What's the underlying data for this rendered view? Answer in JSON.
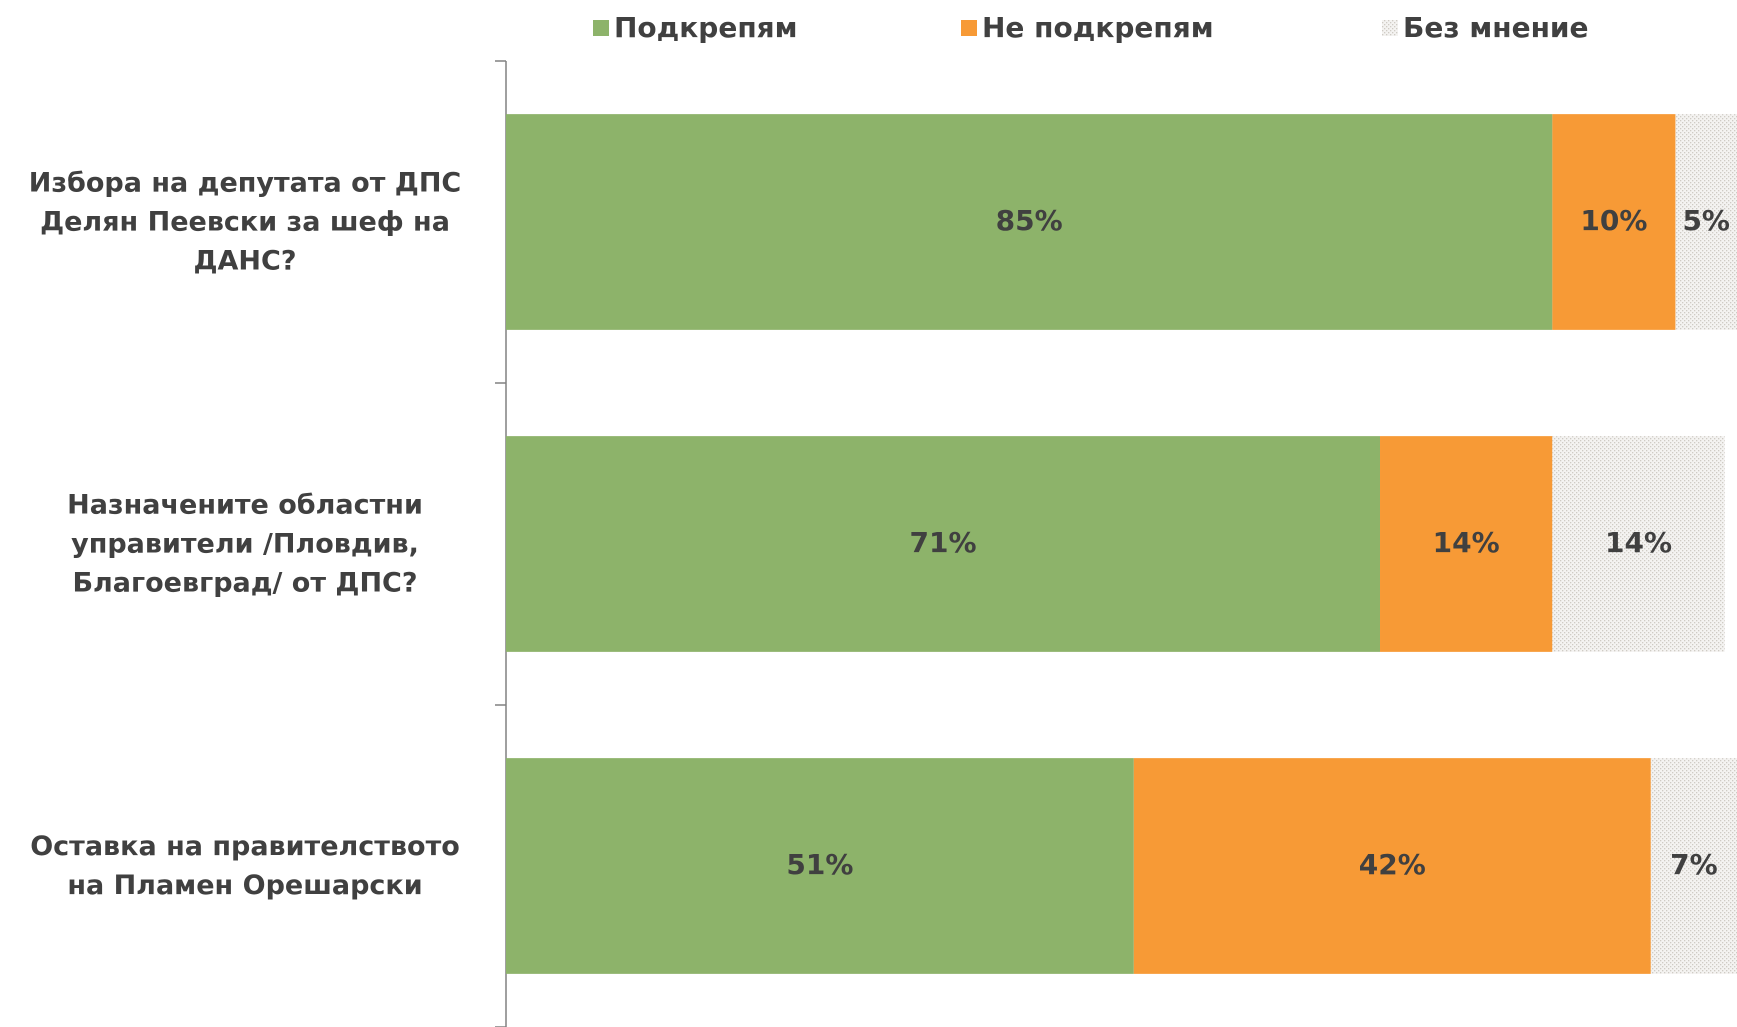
{
  "chart_data": {
    "type": "stacked-bar-horizontal",
    "categories": [
      "Избора на депутата от ДПС Делян Пеевски за шеф на ДАНС?",
      "Назначените областни управители /Пловдив, Благоевград/ от ДПС?",
      "Оставка на правителството на Пламен Орешарски"
    ],
    "series": [
      {
        "name": "Подкрепям",
        "color": "#8db36a",
        "values": [
          85,
          71,
          51
        ],
        "value_labels": [
          "85%",
          "71%",
          "51%"
        ]
      },
      {
        "name": "Не подкрепям",
        "color": "#f79a36",
        "values": [
          10,
          14,
          42
        ],
        "value_labels": [
          "10%",
          "14%",
          "42%"
        ]
      },
      {
        "name": "Без мнение",
        "color": "#cfcbc4",
        "values": [
          5,
          14,
          7
        ],
        "value_labels": [
          "5%",
          "14%",
          "7%"
        ]
      }
    ],
    "legend": "top"
  }
}
